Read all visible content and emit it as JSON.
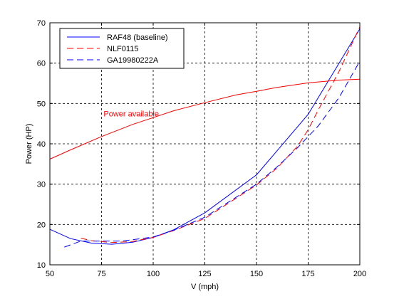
{
  "chart_data": {
    "type": "line",
    "title": "",
    "xlabel": "V (mph)",
    "ylabel": "Power (HP)",
    "xlim": [
      50,
      200
    ],
    "ylim": [
      10,
      70
    ],
    "xticks": [
      50,
      75,
      100,
      125,
      150,
      175,
      200
    ],
    "yticks": [
      10,
      20,
      30,
      40,
      50,
      60,
      70
    ],
    "grid": true,
    "legend_position": "top-left",
    "series": [
      {
        "name": "RAF48 (baseline)",
        "color": "#0000ff",
        "dash": "solid",
        "x": [
          50,
          60,
          70,
          80,
          90,
          100,
          110,
          125,
          150,
          175,
          200
        ],
        "y": [
          18.8,
          16.5,
          15.4,
          15.1,
          15.6,
          16.8,
          18.7,
          22.9,
          32.3,
          47.3,
          68.5
        ]
      },
      {
        "name": "NLF0115",
        "color": "#ff0000",
        "dash": "dashed",
        "x": [
          65,
          70,
          80,
          90,
          100,
          110,
          125,
          150,
          160,
          170,
          175,
          180,
          190,
          200
        ],
        "y": [
          16.6,
          16.0,
          15.5,
          15.8,
          16.8,
          18.5,
          21.5,
          29.8,
          34.0,
          39.5,
          43.5,
          48.5,
          58.0,
          69.0
        ]
      },
      {
        "name": "GA19980222A",
        "color": "#0000ff",
        "dash": "dashed",
        "x": [
          57,
          65,
          75,
          85,
          100,
          110,
          125,
          150,
          160,
          170,
          180,
          190,
          200
        ],
        "y": [
          14.4,
          15.9,
          15.9,
          15.9,
          16.9,
          18.6,
          21.8,
          30.0,
          34.3,
          39.1,
          44.5,
          51.5,
          60.5
        ]
      },
      {
        "name": "Power available",
        "color": "#ff0000",
        "dash": "solid",
        "x": [
          50,
          60,
          75,
          90,
          100,
          110,
          125,
          140,
          150,
          160,
          175,
          190,
          200
        ],
        "y": [
          36.2,
          38.5,
          41.8,
          44.8,
          46.5,
          48.2,
          50.2,
          52.1,
          53.0,
          54.0,
          55.1,
          55.8,
          56.0
        ]
      }
    ],
    "legend": [
      "RAF48 (baseline)",
      "NLF0115",
      "GA19980222A"
    ],
    "annotations": [
      {
        "text": "Power available",
        "x": 76,
        "y": 47.5,
        "color": "#ff0000"
      }
    ]
  }
}
